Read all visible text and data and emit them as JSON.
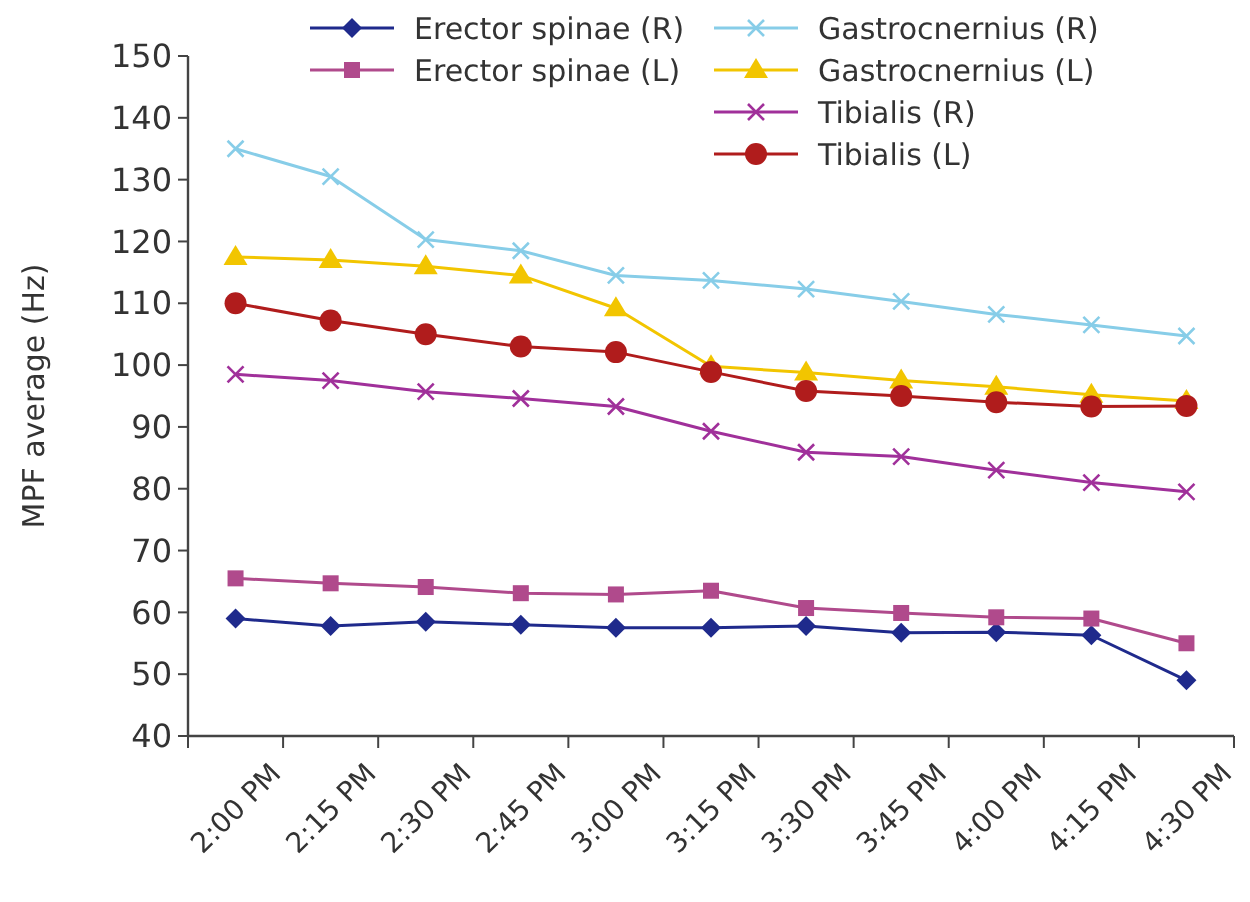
{
  "chart_data": {
    "type": "line",
    "ylabel": "MPF average (Hz)",
    "categories": [
      "2:00 PM",
      "2:15 PM",
      "2:30 PM",
      "2:45 PM",
      "3:00 PM",
      "3:15 PM",
      "3:30 PM",
      "3:45 PM",
      "4:00 PM",
      "4:15 PM",
      "4:30 PM"
    ],
    "ylim": [
      40,
      150
    ],
    "yticks": [
      40,
      50,
      60,
      70,
      80,
      90,
      100,
      110,
      120,
      130,
      140,
      150
    ],
    "grid": false,
    "legend": "top",
    "line_style": "solid",
    "series": [
      {
        "name": "Erector spinae (R)",
        "color": "#1f2a8c",
        "marker": "diamond",
        "values": [
          59,
          57.8,
          58.5,
          58,
          57.5,
          57.5,
          57.8,
          56.7,
          56.8,
          56.3,
          49
        ]
      },
      {
        "name": "Erector spinae (L)",
        "color": "#b04a8c",
        "marker": "square",
        "values": [
          65.5,
          64.7,
          64.1,
          63.1,
          62.9,
          63.5,
          60.7,
          59.9,
          59.2,
          59,
          55
        ]
      },
      {
        "name": "Gastrocnernius (R)",
        "color": "#87cde8",
        "marker": "cross",
        "values": [
          135,
          130.5,
          120.3,
          118.5,
          114.5,
          113.7,
          112.3,
          110.3,
          108.2,
          106.5,
          104.7
        ]
      },
      {
        "name": "Gastrocnernius (L)",
        "color": "#f2c500",
        "marker": "triangle",
        "values": [
          117.5,
          117,
          116,
          114.5,
          109.2,
          99.8,
          98.8,
          97.5,
          96.5,
          95.2,
          94.2
        ]
      },
      {
        "name": "Tibialis (R)",
        "color": "#a0309a",
        "marker": "cross",
        "values": [
          98.5,
          97.5,
          95.7,
          94.6,
          93.3,
          89.3,
          85.9,
          85.2,
          83,
          81,
          79.5
        ]
      },
      {
        "name": "Tibialis (L)",
        "color": "#b01c1c",
        "marker": "circle",
        "values": [
          110,
          107.2,
          105,
          103,
          102.1,
          98.9,
          95.8,
          95,
          94,
          93.3,
          93.4
        ]
      }
    ]
  }
}
